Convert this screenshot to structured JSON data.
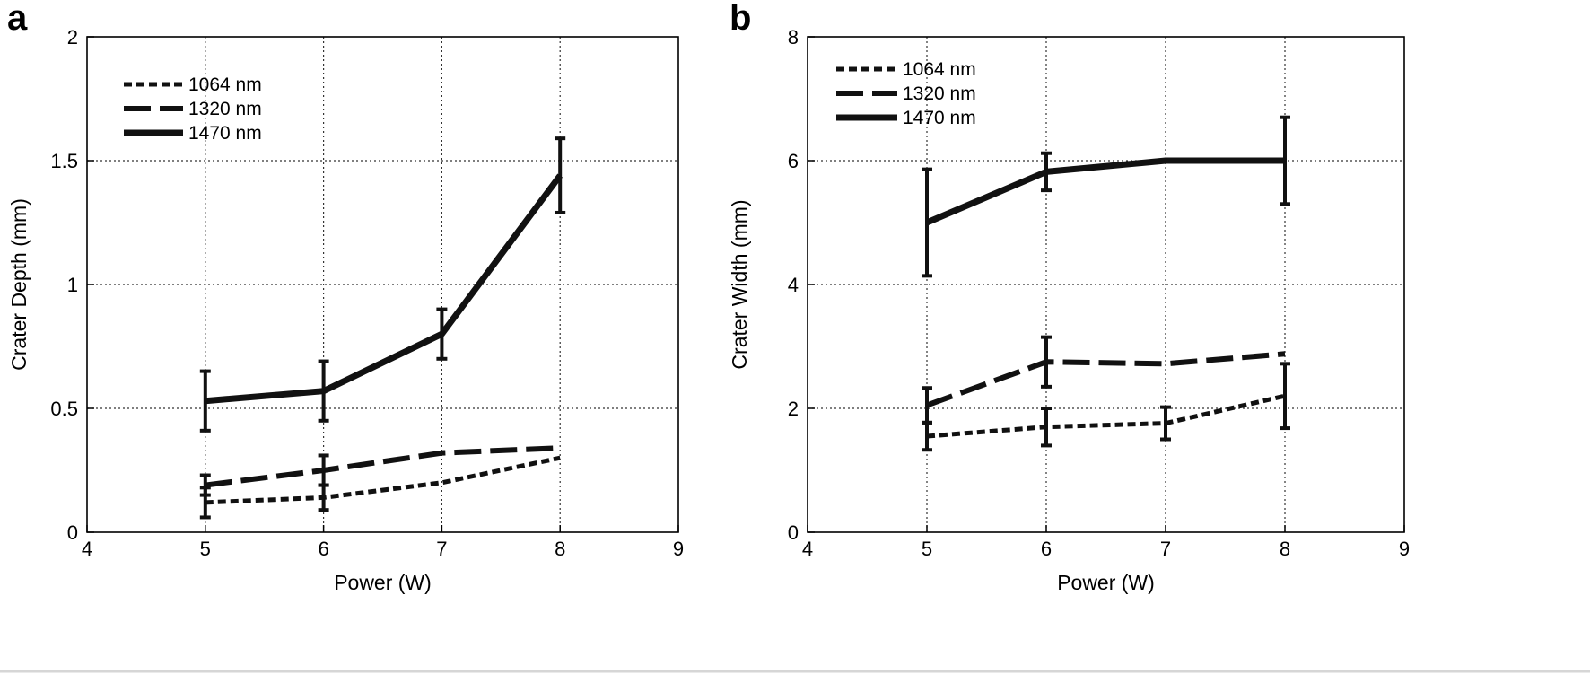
{
  "chart_data": [
    {
      "panel": "a",
      "type": "line",
      "xlabel": "Power (W)",
      "ylabel": "Crater Depth (mm)",
      "xlim": [
        4,
        9
      ],
      "ylim": [
        0,
        2
      ],
      "xticks": [
        4,
        5,
        6,
        7,
        8,
        9
      ],
      "yticks": [
        0,
        0.5,
        1,
        1.5,
        2
      ],
      "xtick_labels": [
        "4",
        "5",
        "6",
        "7",
        "8",
        "9"
      ],
      "ytick_labels": [
        "0",
        "0.5",
        "1",
        "1.5",
        "2"
      ],
      "grid": true,
      "legend_position": "top-left",
      "x": [
        5,
        6,
        7,
        8
      ],
      "series": [
        {
          "name": "1064 nm",
          "style": "dotted",
          "values": [
            0.12,
            0.14,
            0.2,
            0.3
          ],
          "errors": [
            0.06,
            0.05,
            null,
            null
          ]
        },
        {
          "name": "1320 nm",
          "style": "dashed",
          "values": [
            0.19,
            0.25,
            0.32,
            0.34
          ],
          "errors": [
            0.04,
            0.06,
            null,
            null
          ]
        },
        {
          "name": "1470 nm",
          "style": "solid",
          "values": [
            0.53,
            0.57,
            0.8,
            1.44
          ],
          "errors": [
            0.12,
            0.12,
            0.1,
            0.15
          ]
        }
      ]
    },
    {
      "panel": "b",
      "type": "line",
      "xlabel": "Power (W)",
      "ylabel": "Crater Width (mm)",
      "xlim": [
        4,
        9
      ],
      "ylim": [
        0,
        8
      ],
      "xticks": [
        4,
        5,
        6,
        7,
        8,
        9
      ],
      "yticks": [
        0,
        2,
        4,
        6,
        8
      ],
      "xtick_labels": [
        "4",
        "5",
        "6",
        "7",
        "8",
        "9"
      ],
      "ytick_labels": [
        "0",
        "2",
        "4",
        "6",
        "8"
      ],
      "grid": true,
      "legend_position": "top-left",
      "x": [
        5,
        6,
        7,
        8
      ],
      "series": [
        {
          "name": "1064 nm",
          "style": "dotted",
          "values": [
            1.55,
            1.7,
            1.76,
            2.2
          ],
          "errors": [
            0.22,
            0.3,
            0.26,
            0.52
          ]
        },
        {
          "name": "1320 nm",
          "style": "dashed",
          "values": [
            2.05,
            2.75,
            2.72,
            2.88
          ],
          "errors": [
            0.28,
            0.4,
            null,
            null
          ]
        },
        {
          "name": "1470 nm",
          "style": "solid",
          "values": [
            5.0,
            5.82,
            6.0,
            6.0
          ],
          "errors": [
            0.86,
            0.3,
            null,
            0.7
          ]
        }
      ]
    }
  ]
}
